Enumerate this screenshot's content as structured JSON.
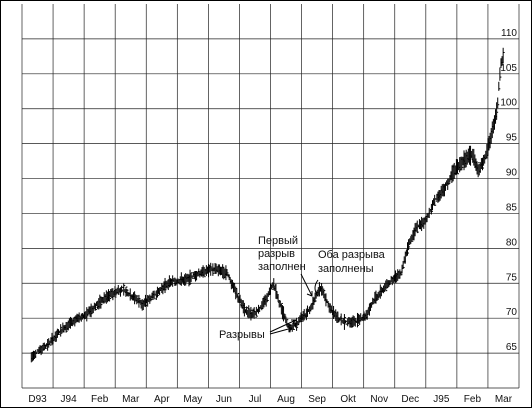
{
  "chart_data": {
    "type": "line",
    "style": "bar-ohlc",
    "title": "",
    "xlabel": "",
    "ylabel": "",
    "grid": true,
    "ylim": [
      60,
      115
    ],
    "y_ticks": [
      65,
      70,
      75,
      80,
      85,
      90,
      95,
      100,
      105,
      110
    ],
    "x_ticks": [
      "D93",
      "J94",
      "Feb",
      "Mar",
      "Apr",
      "May",
      "Jun",
      "Jul",
      "Aug",
      "Sep",
      "Okt",
      "Nov",
      "Dec",
      "J95",
      "Feb",
      "Mar"
    ],
    "series": [
      {
        "values": [
          [
            0.0,
            64.5
          ],
          [
            0.3,
            65.5
          ],
          [
            0.6,
            66.5
          ],
          [
            1.0,
            68.5
          ],
          [
            1.3,
            69.5
          ],
          [
            1.6,
            70.0
          ],
          [
            2.0,
            71.5
          ],
          [
            2.4,
            73.0
          ],
          [
            2.8,
            74.0
          ],
          [
            3.0,
            74.0
          ],
          [
            3.3,
            73.0
          ],
          [
            3.6,
            72.0
          ],
          [
            4.0,
            73.5
          ],
          [
            4.4,
            75.0
          ],
          [
            4.8,
            75.5
          ],
          [
            5.0,
            75.5
          ],
          [
            5.4,
            76.5
          ],
          [
            5.8,
            77.0
          ],
          [
            6.0,
            77.0
          ],
          [
            6.3,
            76.5
          ],
          [
            6.6,
            73.5
          ],
          [
            6.9,
            71.0
          ],
          [
            7.2,
            70.5
          ],
          [
            7.6,
            73.0
          ],
          [
            7.8,
            75.0
          ],
          [
            8.0,
            72.0
          ],
          [
            8.3,
            68.5
          ],
          [
            8.6,
            69.5
          ],
          [
            8.8,
            70.5
          ],
          [
            9.0,
            71.5
          ],
          [
            9.3,
            74.5
          ],
          [
            9.6,
            71.5
          ],
          [
            10.0,
            69.5
          ],
          [
            10.4,
            69.5
          ],
          [
            10.8,
            70.5
          ],
          [
            11.0,
            72.5
          ],
          [
            11.3,
            74.0
          ],
          [
            11.6,
            75.5
          ],
          [
            11.9,
            76.5
          ],
          [
            12.1,
            80.0
          ],
          [
            12.4,
            83.0
          ],
          [
            12.7,
            84.0
          ],
          [
            13.0,
            87.0
          ],
          [
            13.3,
            88.5
          ],
          [
            13.6,
            91.0
          ],
          [
            13.9,
            92.5
          ],
          [
            14.2,
            93.5
          ],
          [
            14.4,
            91.0
          ],
          [
            14.6,
            93.0
          ],
          [
            14.8,
            96.0
          ],
          [
            15.0,
            100.0
          ],
          [
            15.1,
            106.0
          ],
          [
            15.2,
            108.0
          ]
        ]
      }
    ],
    "annotations": [
      {
        "text_lines": [
          "Первый",
          "разрыв",
          "заполнен"
        ]
      },
      {
        "text_lines": [
          "Оба разрыва",
          "заполнены"
        ]
      },
      {
        "text_lines": [
          "Разрывы"
        ]
      }
    ]
  }
}
